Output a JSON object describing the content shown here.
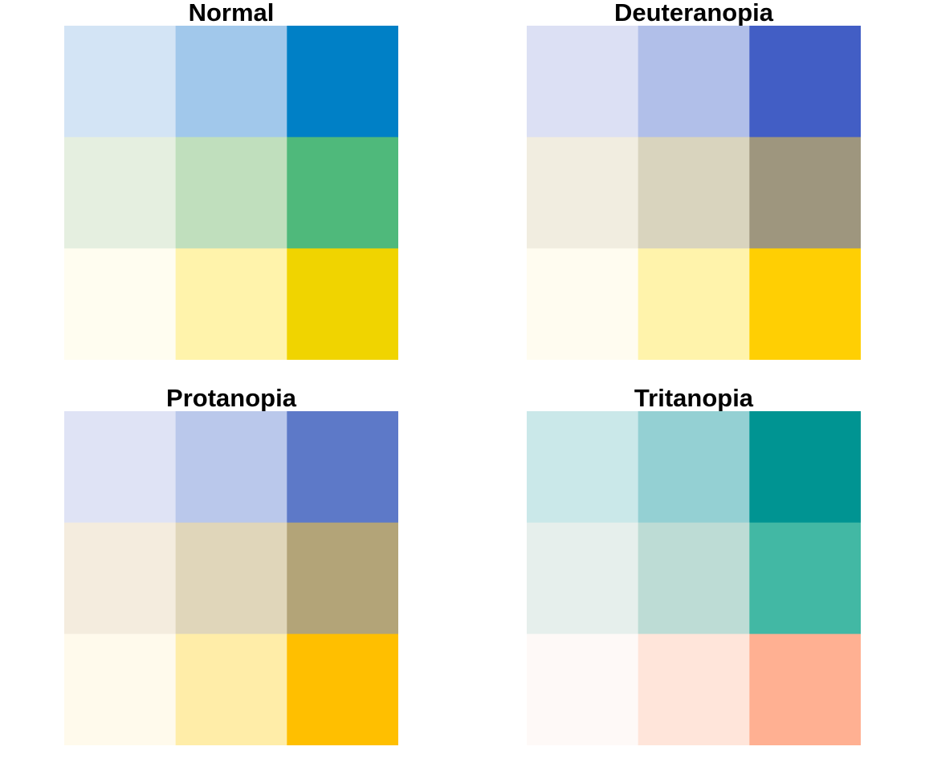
{
  "chart_data": [
    {
      "type": "heatmap",
      "title": "Normal",
      "rows": 3,
      "cols": 3,
      "cells": [
        [
          "#d3e4f5",
          "#a1c8eb",
          "#0080c6"
        ],
        [
          "#e5efe0",
          "#c0dfbd",
          "#4fb97b"
        ],
        [
          "#fffdf0",
          "#fff3ab",
          "#f0d400"
        ]
      ]
    },
    {
      "type": "heatmap",
      "title": "Deuteranopia",
      "rows": 3,
      "cols": 3,
      "cells": [
        [
          "#dce0f4",
          "#b1bfe9",
          "#425ec5"
        ],
        [
          "#f1ede0",
          "#d9d4be",
          "#9e967e"
        ],
        [
          "#fffcf0",
          "#fff3ab",
          "#ffcf03"
        ]
      ]
    },
    {
      "type": "heatmap",
      "title": "Protanopia",
      "rows": 3,
      "cols": 3,
      "cells": [
        [
          "#dfe3f5",
          "#bac8eb",
          "#5d79c8"
        ],
        [
          "#f4ecde",
          "#e0d6ba",
          "#b3a478"
        ],
        [
          "#fffaec",
          "#ffeda8",
          "#ffbf00"
        ]
      ]
    },
    {
      "type": "heatmap",
      "title": "Tritanopia",
      "rows": 3,
      "cols": 3,
      "cells": [
        [
          "#cae8e9",
          "#94d0d3",
          "#009492"
        ],
        [
          "#e6efec",
          "#bddcd5",
          "#42b8a4"
        ],
        [
          "#fef9f7",
          "#ffe5da",
          "#ffb092"
        ]
      ]
    }
  ]
}
